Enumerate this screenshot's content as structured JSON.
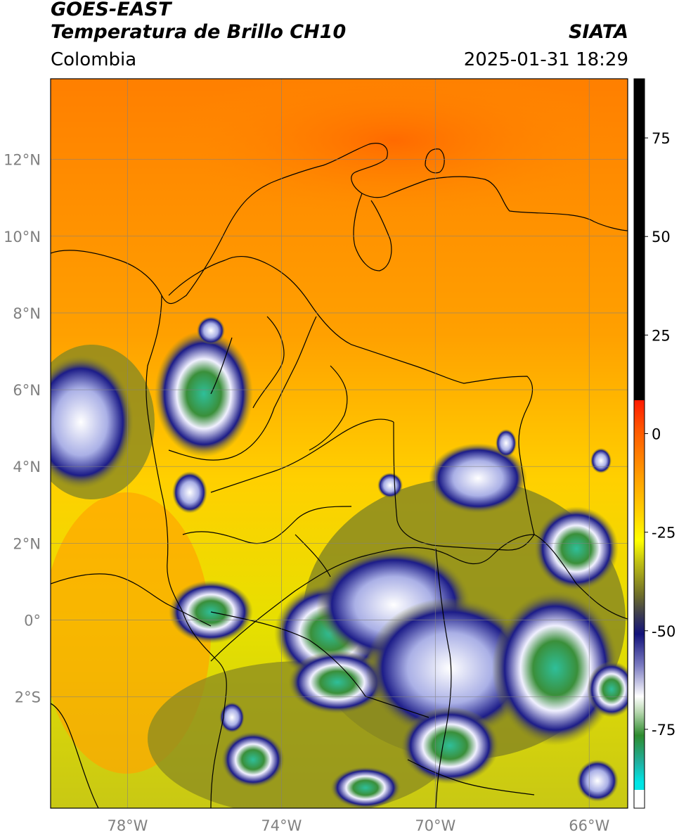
{
  "header": {
    "satellite": "GOES-EAST",
    "product": "Temperatura de Brillo CH10",
    "region": "Colombia",
    "agency": "SIATA",
    "datetime": "2025-01-31 18:29"
  },
  "map": {
    "lat_labels": [
      "12°N",
      "10°N",
      "8°N",
      "6°N",
      "4°N",
      "2°N",
      "0°",
      "2°S"
    ],
    "lon_labels": [
      "78°W",
      "74°W",
      "70°W",
      "66°W"
    ],
    "lat_values": [
      12,
      10,
      8,
      6,
      4,
      2,
      0,
      -2
    ],
    "lon_values": [
      -78,
      -74,
      -70,
      -66
    ],
    "extent": {
      "lon_min": -80,
      "lon_max": -65,
      "lat_min": -4.9,
      "lat_max": 14.1
    }
  },
  "colorbar": {
    "tick_labels": [
      "75",
      "50",
      "25",
      "0",
      "-25",
      "-50",
      "-75"
    ],
    "tick_values": [
      75,
      50,
      25,
      0,
      -25,
      -50,
      -75
    ],
    "range": [
      -95,
      90
    ],
    "colors": {
      "black": "#000000",
      "red": "#ff1a00",
      "orange": "#ff8c00",
      "yellow": "#ffff00",
      "olive": "#8c8c1e",
      "navy": "#14147a",
      "white": "#ffffff",
      "green": "#2e8b2e",
      "teal": "#20c0a0",
      "cyan": "#00e5e5"
    }
  }
}
